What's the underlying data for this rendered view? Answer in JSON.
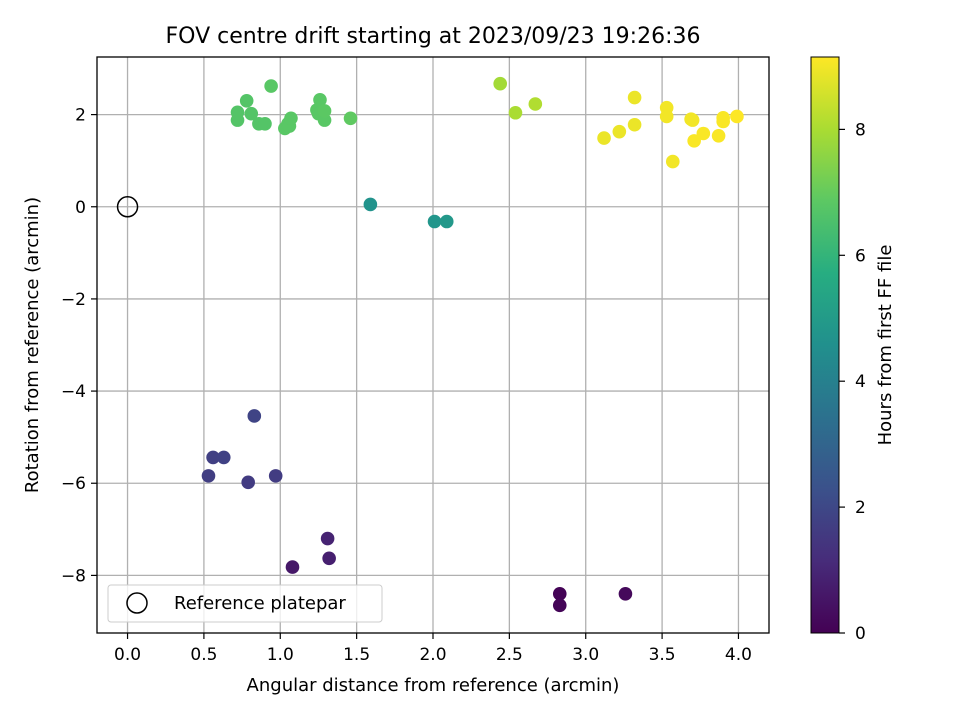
{
  "chart_data": {
    "type": "scatter",
    "title": "FOV centre drift starting at 2023/09/23 19:26:36",
    "xlabel": "Angular distance from reference (arcmin)",
    "ylabel": "Rotation from reference (arcmin)",
    "xlim": [
      -0.2,
      4.2
    ],
    "ylim": [
      -9.25,
      3.25
    ],
    "xticks": [
      0.0,
      0.5,
      1.0,
      1.5,
      2.0,
      2.5,
      3.0,
      3.5,
      4.0
    ],
    "xtick_labels": [
      "0.0",
      "0.5",
      "1.0",
      "1.5",
      "2.0",
      "2.5",
      "3.0",
      "3.5",
      "4.0"
    ],
    "yticks": [
      -8,
      -6,
      -4,
      -2,
      0,
      2
    ],
    "ytick_labels": [
      "−8",
      "−6",
      "−4",
      "−2",
      "0",
      "2"
    ],
    "grid": true,
    "colormap": "viridis",
    "colorbar": {
      "label": "Hours from first FF file",
      "range": [
        0,
        9.15
      ],
      "ticks": [
        0,
        2,
        4,
        6,
        8
      ],
      "tick_labels": [
        "0",
        "2",
        "4",
        "6",
        "8"
      ]
    },
    "legend": {
      "placement": "lower-left",
      "entries": [
        {
          "label": "Reference platepar",
          "marker": "open-circle",
          "color": "#000000"
        }
      ]
    },
    "reference_point": {
      "x": 0.0,
      "y": 0.0
    },
    "points": [
      {
        "x": 2.83,
        "y": -8.4,
        "hours": 0.05
      },
      {
        "x": 2.83,
        "y": -8.65,
        "hours": 0.1
      },
      {
        "x": 3.26,
        "y": -8.4,
        "hours": 0.2
      },
      {
        "x": 1.08,
        "y": -7.82,
        "hours": 0.6
      },
      {
        "x": 1.32,
        "y": -7.63,
        "hours": 0.8
      },
      {
        "x": 1.31,
        "y": -7.2,
        "hours": 0.9
      },
      {
        "x": 0.79,
        "y": -5.98,
        "hours": 1.6
      },
      {
        "x": 0.97,
        "y": -5.84,
        "hours": 1.65
      },
      {
        "x": 0.53,
        "y": -5.84,
        "hours": 1.7
      },
      {
        "x": 0.56,
        "y": -5.44,
        "hours": 1.75
      },
      {
        "x": 0.63,
        "y": -5.44,
        "hours": 1.8
      },
      {
        "x": 0.83,
        "y": -4.54,
        "hours": 1.9
      },
      {
        "x": 1.59,
        "y": 0.05,
        "hours": 4.7
      },
      {
        "x": 2.01,
        "y": -0.32,
        "hours": 4.8
      },
      {
        "x": 2.09,
        "y": -0.32,
        "hours": 4.9
      },
      {
        "x": 0.72,
        "y": 1.88,
        "hours": 6.7
      },
      {
        "x": 0.72,
        "y": 2.05,
        "hours": 6.7
      },
      {
        "x": 0.78,
        "y": 2.3,
        "hours": 6.7
      },
      {
        "x": 0.81,
        "y": 2.02,
        "hours": 6.7
      },
      {
        "x": 0.86,
        "y": 1.8,
        "hours": 6.7
      },
      {
        "x": 0.9,
        "y": 1.8,
        "hours": 6.7
      },
      {
        "x": 0.94,
        "y": 2.62,
        "hours": 6.8
      },
      {
        "x": 1.03,
        "y": 1.7,
        "hours": 6.8
      },
      {
        "x": 1.05,
        "y": 1.8,
        "hours": 6.8
      },
      {
        "x": 1.06,
        "y": 1.75,
        "hours": 6.8
      },
      {
        "x": 1.07,
        "y": 1.92,
        "hours": 6.8
      },
      {
        "x": 1.24,
        "y": 2.1,
        "hours": 6.8
      },
      {
        "x": 1.25,
        "y": 2.02,
        "hours": 6.8
      },
      {
        "x": 1.26,
        "y": 2.32,
        "hours": 6.8
      },
      {
        "x": 1.29,
        "y": 1.88,
        "hours": 6.8
      },
      {
        "x": 1.29,
        "y": 2.08,
        "hours": 6.85
      },
      {
        "x": 1.46,
        "y": 1.92,
        "hours": 6.9
      },
      {
        "x": 2.44,
        "y": 2.67,
        "hours": 7.9
      },
      {
        "x": 2.54,
        "y": 2.04,
        "hours": 8.0
      },
      {
        "x": 2.67,
        "y": 2.23,
        "hours": 8.1
      },
      {
        "x": 3.12,
        "y": 1.49,
        "hours": 8.9
      },
      {
        "x": 3.22,
        "y": 1.63,
        "hours": 8.9
      },
      {
        "x": 3.32,
        "y": 2.37,
        "hours": 8.9
      },
      {
        "x": 3.32,
        "y": 1.78,
        "hours": 8.9
      },
      {
        "x": 3.53,
        "y": 2.15,
        "hours": 9.0
      },
      {
        "x": 3.53,
        "y": 1.96,
        "hours": 9.0
      },
      {
        "x": 3.57,
        "y": 0.98,
        "hours": 9.0
      },
      {
        "x": 3.69,
        "y": 1.9,
        "hours": 9.0
      },
      {
        "x": 3.7,
        "y": 1.88,
        "hours": 9.0
      },
      {
        "x": 3.71,
        "y": 1.43,
        "hours": 9.1
      },
      {
        "x": 3.77,
        "y": 1.59,
        "hours": 9.1
      },
      {
        "x": 3.87,
        "y": 1.54,
        "hours": 9.1
      },
      {
        "x": 3.9,
        "y": 1.93,
        "hours": 9.1
      },
      {
        "x": 3.9,
        "y": 1.85,
        "hours": 9.1
      },
      {
        "x": 3.99,
        "y": 1.96,
        "hours": 9.15
      }
    ]
  }
}
